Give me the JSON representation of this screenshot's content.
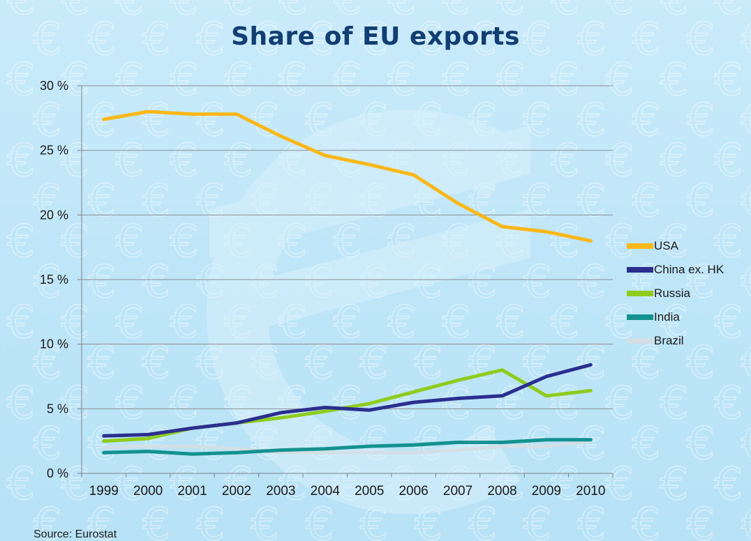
{
  "chart_data": {
    "type": "line",
    "title": "Share of EU exports",
    "xlabel": "",
    "ylabel": "",
    "x": [
      "1999",
      "2000",
      "2001",
      "2002",
      "2003",
      "2004",
      "2005",
      "2006",
      "2007",
      "2008",
      "2009",
      "2010"
    ],
    "ylim": [
      0,
      30
    ],
    "yticks": [
      0,
      5,
      10,
      15,
      20,
      25,
      30
    ],
    "ytick_labels": [
      "0 %",
      "5 %",
      "10 %",
      "15 %",
      "20 %",
      "25 %",
      "30 %"
    ],
    "grid": "horizontal",
    "legend_position": "right",
    "series": [
      {
        "name": "USA",
        "color": "#f9b81a",
        "values": [
          27.4,
          28.0,
          27.8,
          27.8,
          26.1,
          24.6,
          23.9,
          23.1,
          20.9,
          19.1,
          18.7,
          18.0
        ]
      },
      {
        "name": "China ex. HK",
        "color": "#2a2f8e",
        "values": [
          2.9,
          3.0,
          3.5,
          3.9,
          4.7,
          5.1,
          4.9,
          5.5,
          5.8,
          6.0,
          7.5,
          8.4
        ]
      },
      {
        "name": "Russia",
        "color": "#8fcc1e",
        "values": [
          2.5,
          2.7,
          3.5,
          3.9,
          4.3,
          4.8,
          5.4,
          6.3,
          7.2,
          8.0,
          6.0,
          6.4
        ]
      },
      {
        "name": "India",
        "color": "#13928f",
        "values": [
          1.6,
          1.7,
          1.5,
          1.6,
          1.8,
          1.9,
          2.1,
          2.2,
          2.4,
          2.4,
          2.6,
          2.6
        ]
      },
      {
        "name": "Brazil",
        "color": "#d2dfe6",
        "values": [
          2.0,
          2.1,
          2.1,
          1.9,
          1.6,
          1.6,
          1.6,
          1.6,
          1.8,
          2.1,
          2.1,
          2.5
        ]
      }
    ]
  },
  "footer": {
    "source": "Source: Eurostat"
  }
}
